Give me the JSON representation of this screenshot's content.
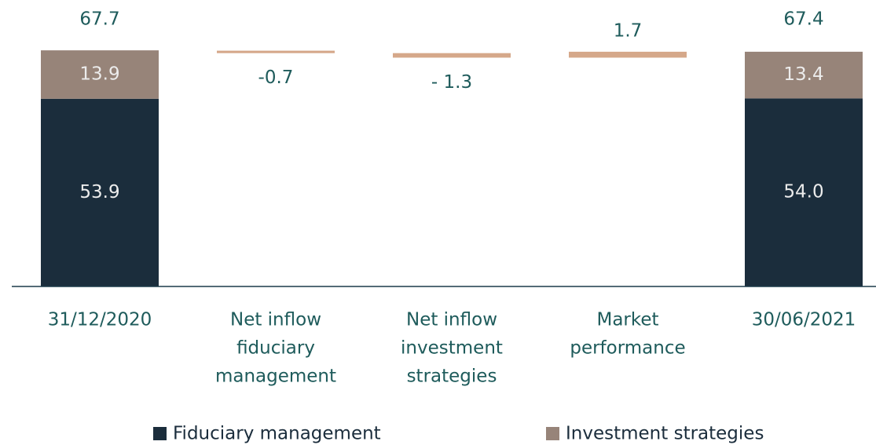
{
  "chart_data": {
    "type": "waterfall",
    "categories": [
      [
        "31/12/2020"
      ],
      [
        "Net inflow",
        "fiduciary",
        "management"
      ],
      [
        "Net inflow",
        "investment",
        "strategies"
      ],
      [
        "Market",
        "performance"
      ],
      [
        "30/06/2021"
      ]
    ],
    "series": [
      {
        "name": "Fiduciary management",
        "color": "#1b2d3c",
        "values": [
          53.9,
          null,
          null,
          null,
          54.0
        ],
        "value_labels": [
          "53.9",
          null,
          null,
          null,
          "54.0"
        ]
      },
      {
        "name": "Investment strategies",
        "color": "#978479",
        "values": [
          13.9,
          null,
          null,
          null,
          13.4
        ]
      }
    ],
    "totals": [
      67.7,
      null,
      null,
      null,
      67.4
    ],
    "changes": [
      null,
      -0.7,
      -1.3,
      1.7,
      null
    ],
    "change_labels": [
      null,
      "-0.7",
      "- 1.3",
      "1.7",
      null
    ],
    "change_color": "#d5a88a",
    "ylim": [
      0,
      80
    ],
    "legend": "bottom"
  }
}
